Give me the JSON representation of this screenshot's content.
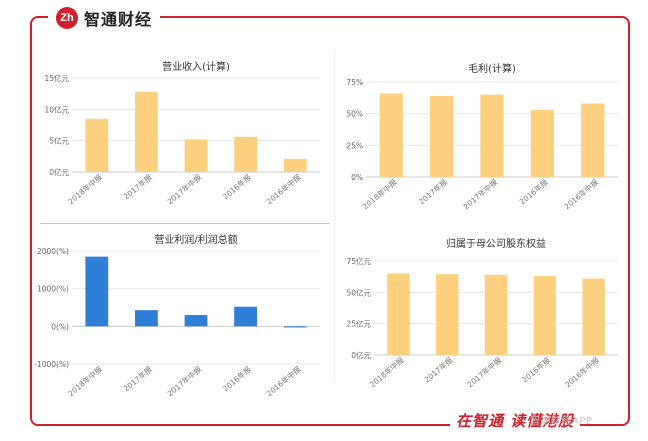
{
  "brand": {
    "logo_mark": "Zh",
    "name": "智通财经"
  },
  "footer": {
    "slogan": "在智通 读懂港股",
    "watermark": "智通财经APP"
  },
  "colors": {
    "frame": "#d0202c",
    "bar_orange": "#fcd07f",
    "bar_blue": "#2f7fd8",
    "axis": "#cccccc",
    "text": "#555555"
  },
  "chart_data": [
    {
      "id": "revenue",
      "type": "bar",
      "title": "营业收入(计算)",
      "categories": [
        "2018年中报",
        "2017年报",
        "2017年中报",
        "2016年报",
        "2016年中报"
      ],
      "values": [
        8.5,
        12.8,
        5.2,
        5.6,
        2.1
      ],
      "ylim": [
        0,
        15
      ],
      "yticks": [
        0,
        5,
        10,
        15
      ],
      "ytick_labels": [
        "0亿元",
        "5亿元",
        "10亿元",
        "15亿元"
      ],
      "grid": true,
      "color": "#fcd07f"
    },
    {
      "id": "gross_margin",
      "type": "bar",
      "title": "毛利(计算)",
      "categories": [
        "2018年中报",
        "2017年报",
        "2017年中报",
        "2016年报",
        "2016年中报"
      ],
      "values": [
        66,
        64,
        65,
        53,
        58
      ],
      "ylim": [
        0,
        75
      ],
      "yticks": [
        0,
        25,
        50,
        75
      ],
      "ytick_labels": [
        "0%",
        "25%",
        "50%",
        "75%"
      ],
      "grid": true,
      "color": "#fcd07f"
    },
    {
      "id": "op_profit_ratio",
      "type": "bar",
      "title": "营业利润/利润总额",
      "categories": [
        "2018年中报",
        "2017年报",
        "2017年中报",
        "2016年报",
        "2016年中报"
      ],
      "values": [
        1850,
        430,
        300,
        520,
        -30
      ],
      "ylim": [
        -1000,
        2000
      ],
      "yticks": [
        -1000,
        0,
        1000,
        2000
      ],
      "ytick_labels": [
        "-1000(%)",
        "0(%)",
        "1000(%)",
        "2000(%)"
      ],
      "grid": true,
      "color": "#2f7fd8"
    },
    {
      "id": "equity",
      "type": "bar",
      "title": "归属于母公司股东权益",
      "categories": [
        "2018年中报",
        "2017年报",
        "2017年中报",
        "2016年报",
        "2016年中报"
      ],
      "values": [
        65,
        64.5,
        64,
        63,
        61
      ],
      "ylim": [
        0,
        75
      ],
      "yticks": [
        0,
        25,
        50,
        75
      ],
      "ytick_labels": [
        "0亿元",
        "25亿元",
        "50亿元",
        "75亿元"
      ],
      "grid": true,
      "color": "#fcd07f"
    }
  ]
}
